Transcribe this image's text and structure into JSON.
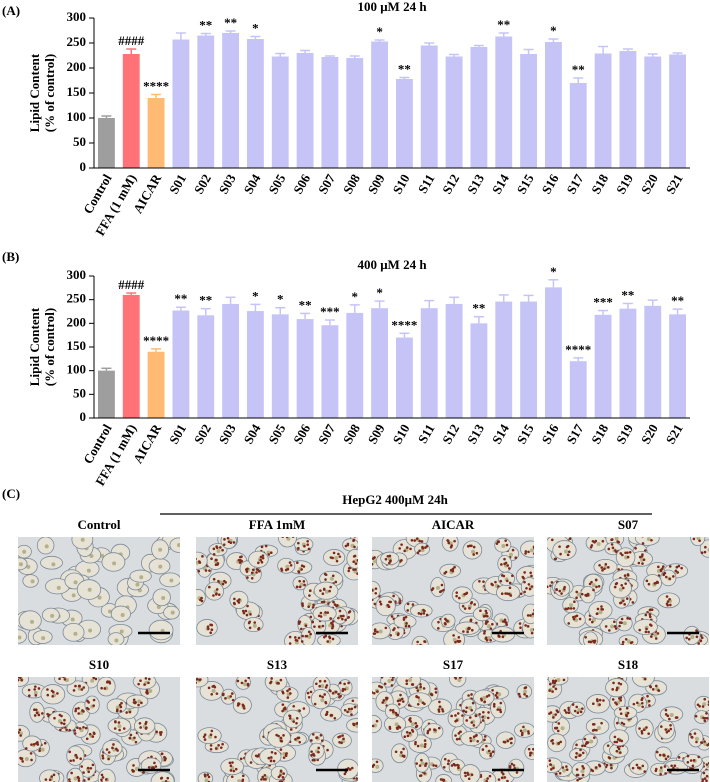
{
  "chart_data": [
    {
      "type": "bar",
      "panel": "(A)",
      "title": "100 μM  24 h",
      "ylabel": [
        "Lipid Content",
        "(% of control)"
      ],
      "categories": [
        "Control",
        "FFA (1 mM)",
        "AICAR",
        "S01",
        "S02",
        "S03",
        "S04",
        "S05",
        "S06",
        "S07",
        "S08",
        "S09",
        "S10",
        "S11",
        "S12",
        "S13",
        "S14",
        "S15",
        "S16",
        "S17",
        "S18",
        "S19",
        "S20",
        "S21"
      ],
      "values": [
        100,
        228,
        140,
        257,
        265,
        270,
        258,
        223,
        230,
        222,
        220,
        253,
        178,
        245,
        223,
        242,
        263,
        228,
        252,
        170,
        229,
        234,
        223,
        227
      ],
      "errors": [
        4,
        10,
        7,
        13,
        4,
        4,
        5,
        6,
        5,
        2,
        4,
        3,
        3,
        5,
        4,
        3,
        7,
        9,
        6,
        10,
        14,
        4,
        5,
        3
      ],
      "significance": [
        null,
        "####",
        "****",
        null,
        "**",
        "**",
        "*",
        null,
        null,
        null,
        null,
        "*",
        "**",
        null,
        null,
        null,
        "**",
        null,
        "*",
        "**",
        null,
        null,
        null,
        null
      ],
      "colors": [
        "#9e9e9e",
        "#ff7378",
        "#ffbb73",
        "#c6c4f7",
        "#c6c4f7",
        "#c6c4f7",
        "#c6c4f7",
        "#c6c4f7",
        "#c6c4f7",
        "#c6c4f7",
        "#c6c4f7",
        "#c6c4f7",
        "#c6c4f7",
        "#c6c4f7",
        "#c6c4f7",
        "#c6c4f7",
        "#c6c4f7",
        "#c6c4f7",
        "#c6c4f7",
        "#c6c4f7",
        "#c6c4f7",
        "#c6c4f7",
        "#c6c4f7",
        "#c6c4f7"
      ],
      "ylim": [
        0,
        300
      ],
      "yticks": [
        0,
        50,
        100,
        150,
        200,
        250,
        300
      ]
    },
    {
      "type": "bar",
      "panel": "(B)",
      "title": "400 μM  24 h",
      "ylabel": [
        "Lipid Content",
        "(% of control)"
      ],
      "categories": [
        "Control",
        "FFA (1 mM)",
        "AICAR",
        "S01",
        "S02",
        "S03",
        "S04",
        "S05",
        "S06",
        "S07",
        "S08",
        "S09",
        "S10",
        "S11",
        "S12",
        "S13",
        "S14",
        "S15",
        "S16",
        "S17",
        "S18",
        "S19",
        "S20",
        "S21"
      ],
      "values": [
        100,
        260,
        140,
        227,
        217,
        241,
        226,
        219,
        209,
        196,
        222,
        232,
        170,
        232,
        241,
        200,
        246,
        246,
        276,
        120,
        218,
        231,
        237,
        219
      ],
      "errors": [
        5,
        4,
        6,
        7,
        14,
        14,
        14,
        14,
        12,
        11,
        17,
        15,
        9,
        16,
        14,
        14,
        14,
        13,
        16,
        7,
        9,
        11,
        12,
        11
      ],
      "significance": [
        null,
        "####",
        "****",
        "**",
        "**",
        null,
        "*",
        "*",
        "**",
        "***",
        "*",
        "*",
        "****",
        null,
        null,
        "**",
        null,
        null,
        "*",
        "****",
        "***",
        "**",
        null,
        "**"
      ],
      "colors": [
        "#9e9e9e",
        "#ff7378",
        "#ffbb73",
        "#c6c4f7",
        "#c6c4f7",
        "#c6c4f7",
        "#c6c4f7",
        "#c6c4f7",
        "#c6c4f7",
        "#c6c4f7",
        "#c6c4f7",
        "#c6c4f7",
        "#c6c4f7",
        "#c6c4f7",
        "#c6c4f7",
        "#c6c4f7",
        "#c6c4f7",
        "#c6c4f7",
        "#c6c4f7",
        "#c6c4f7",
        "#c6c4f7",
        "#c6c4f7",
        "#c6c4f7",
        "#c6c4f7"
      ],
      "ylim": [
        0,
        300
      ],
      "yticks": [
        0,
        50,
        100,
        150,
        200,
        250,
        300
      ]
    }
  ],
  "micrographs": {
    "panel": "(C)",
    "title": "HepG2 400μM 24h",
    "labels": [
      "Control",
      "FFA 1mM",
      "AICAR",
      "S07",
      "S10",
      "S13",
      "S17",
      "S18"
    ]
  }
}
